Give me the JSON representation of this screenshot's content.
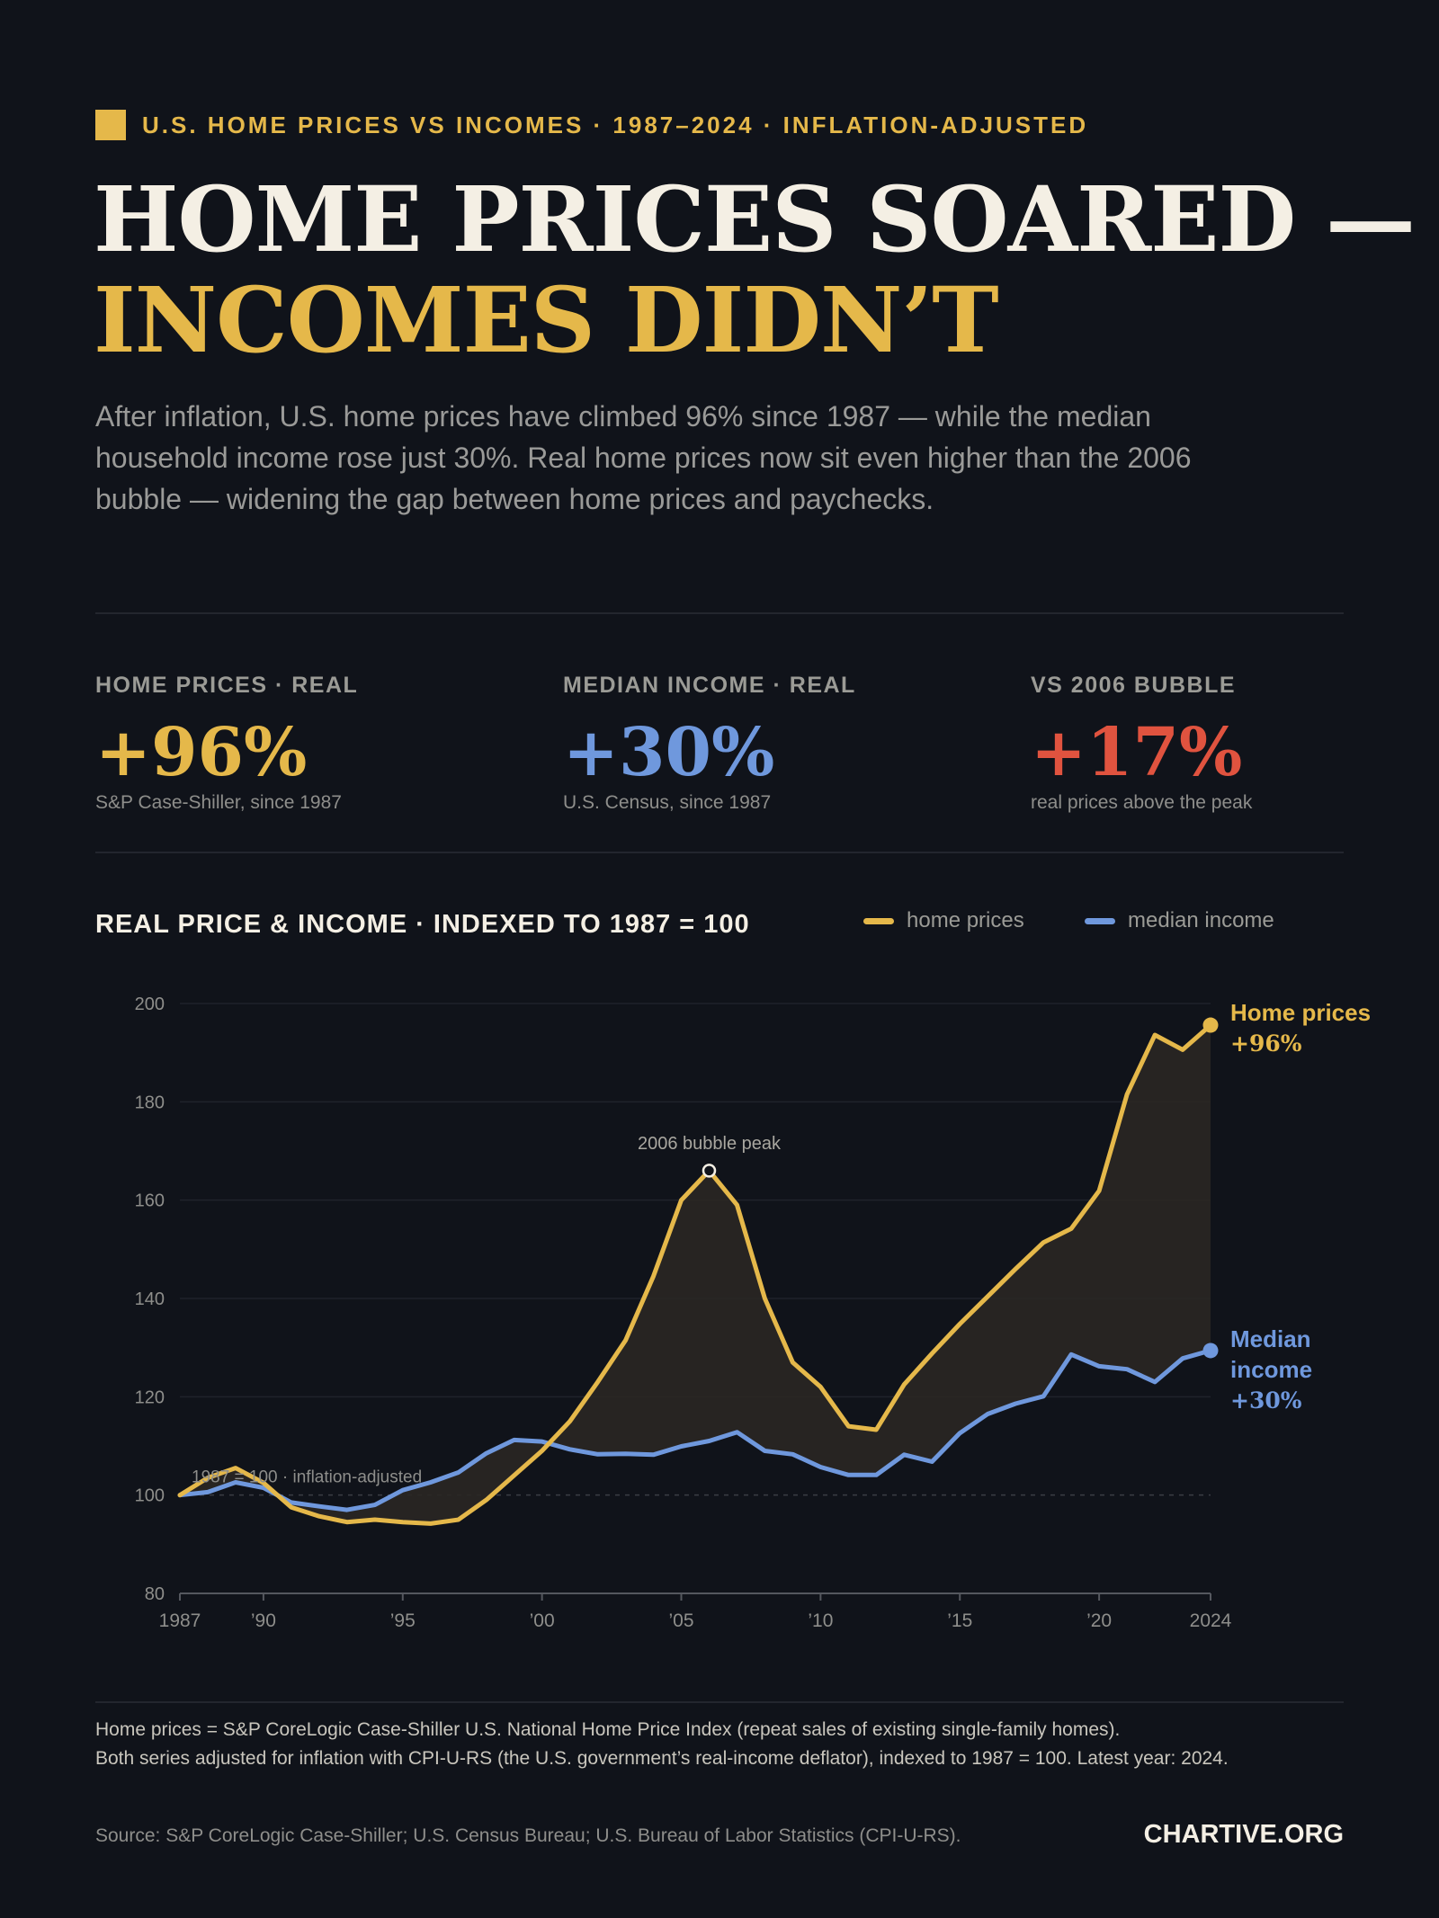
{
  "header": {
    "kicker": "U.S. HOME PRICES VS INCOMES · 1987–2024 · INFLATION-ADJUSTED",
    "headline_line1": "HOME PRICES SOARED —",
    "headline_line2": "INCOMES DIDN’T",
    "dek": "After inflation, U.S. home prices have climbed 96% since 1987 — while the median household income rose just 30%. Real home prices now sit even higher than the 2006 bubble — widening the gap between home prices and paychecks."
  },
  "stats": [
    {
      "label": "HOME PRICES · REAL",
      "value": "+96%",
      "note": "S&P Case-Shiller, since 1987",
      "color": "#e5b84a"
    },
    {
      "label": "MEDIAN INCOME · REAL",
      "value": "+30%",
      "note": "U.S. Census, since 1987",
      "color": "#6f98dd"
    },
    {
      "label": "VS 2006 BUBBLE",
      "value": "+17%",
      "note": "real prices above the peak",
      "color": "#e0533f"
    }
  ],
  "chart_header": {
    "title": "REAL PRICE & INCOME · INDEXED TO 1987 = 100",
    "legend": [
      {
        "label": "home prices",
        "color": "#e5b84a"
      },
      {
        "label": "median income",
        "color": "#6f98dd"
      }
    ]
  },
  "chart_data": {
    "type": "line",
    "ylim": [
      80,
      200
    ],
    "yticks": [
      80,
      100,
      120,
      140,
      160,
      180,
      200
    ],
    "xlim": [
      1987,
      2024
    ],
    "xticks": [
      {
        "year": 1987,
        "label": "1987"
      },
      {
        "year": 1990,
        "label": "’90"
      },
      {
        "year": 1995,
        "label": "’95"
      },
      {
        "year": 2000,
        "label": "’00"
      },
      {
        "year": 2005,
        "label": "’05"
      },
      {
        "year": 2010,
        "label": "’10"
      },
      {
        "year": 2015,
        "label": "’15"
      },
      {
        "year": 2020,
        "label": "’20"
      },
      {
        "year": 2024,
        "label": "2024"
      }
    ],
    "x": [
      1987,
      1988,
      1989,
      1990,
      1991,
      1992,
      1993,
      1994,
      1995,
      1996,
      1997,
      1998,
      1999,
      2000,
      2001,
      2002,
      2003,
      2004,
      2005,
      2006,
      2007,
      2008,
      2009,
      2010,
      2011,
      2012,
      2013,
      2014,
      2015,
      2016,
      2017,
      2018,
      2019,
      2020,
      2021,
      2022,
      2023,
      2024
    ],
    "series": [
      {
        "name": "home prices",
        "color": "#e5b84a",
        "values": [
          100,
          103.5,
          105.5,
          102.5,
          97.5,
          95.7,
          94.5,
          95.0,
          94.5,
          94.2,
          95.0,
          99.0,
          104.0,
          109.0,
          115.0,
          123.0,
          131.5,
          144.5,
          160.0,
          166.0,
          159.0,
          140.0,
          127.0,
          122.0,
          114.0,
          113.3,
          122.5,
          128.8,
          134.8,
          140.4,
          146.0,
          151.4,
          154.2,
          161.9,
          181.5,
          193.6,
          190.6,
          195.6
        ]
      },
      {
        "name": "median income",
        "color": "#6f98dd",
        "values": [
          100,
          100.6,
          102.6,
          101.5,
          98.5,
          97.7,
          97.0,
          98.0,
          101.0,
          102.6,
          104.6,
          108.5,
          111.2,
          110.9,
          109.3,
          108.3,
          108.4,
          108.2,
          109.9,
          111.0,
          112.8,
          109.0,
          108.3,
          105.7,
          104.1,
          104.1,
          108.2,
          106.8,
          112.6,
          116.5,
          118.6,
          120.1,
          128.6,
          126.2,
          125.6,
          123.0,
          127.8,
          129.4
        ]
      }
    ],
    "annotations": {
      "peak_label": "2006 bubble peak",
      "peak_year": 2006,
      "baseline_label": "1987 = 100 · inflation-adjusted",
      "end_home_label_1": "Home prices",
      "end_home_label_2": "+96%",
      "end_income_label_1": "Median",
      "end_income_label_2": "income",
      "end_income_label_3": "+30%"
    }
  },
  "footer": {
    "note_line1": "Home prices = S&P CoreLogic Case-Shiller U.S. National Home Price Index (repeat sales of existing single-family homes).",
    "note_line2": "Both series adjusted for inflation with CPI-U-RS (the U.S. government’s real-income deflator), indexed to 1987 = 100. Latest year: 2024.",
    "source": "Source: S&P CoreLogic Case-Shiller; U.S. Census Bureau; U.S. Bureau of Labor Statistics (CPI-U-RS).",
    "brand": "CHARTIVE.ORG"
  }
}
